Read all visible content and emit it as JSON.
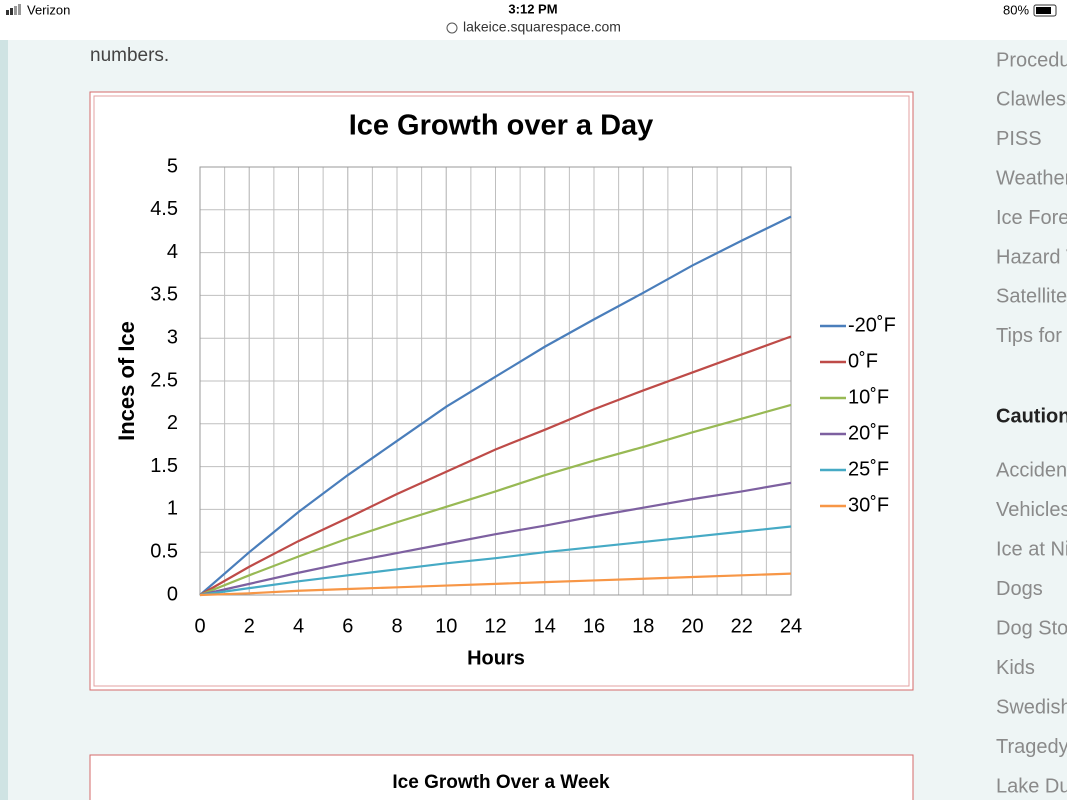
{
  "status_bar": {
    "carrier": "Verizon",
    "time": "3:12 PM",
    "url": "lakeice.squarespace.com",
    "battery": "80%"
  },
  "article": {
    "text": "numbers."
  },
  "chart_data": {
    "type": "line",
    "title": "Ice Growth over a Day",
    "x_label": "Hours",
    "y_label": "Inces of Ice",
    "x": [
      0,
      2,
      4,
      6,
      8,
      10,
      12,
      14,
      16,
      18,
      20,
      22,
      24
    ],
    "series": [
      {
        "name": "-20˚F",
        "color": "#4a7ebb",
        "values": [
          0,
          0.5,
          0.97,
          1.4,
          1.8,
          2.2,
          2.55,
          2.9,
          3.22,
          3.53,
          3.85,
          4.14,
          4.42
        ]
      },
      {
        "name": "0˚F",
        "color": "#be4b48",
        "values": [
          0,
          0.33,
          0.63,
          0.9,
          1.18,
          1.44,
          1.7,
          1.93,
          2.17,
          2.39,
          2.6,
          2.81,
          3.02
        ]
      },
      {
        "name": "10˚F",
        "color": "#98b954",
        "values": [
          0,
          0.23,
          0.45,
          0.66,
          0.85,
          1.03,
          1.21,
          1.4,
          1.57,
          1.73,
          1.9,
          2.06,
          2.22
        ]
      },
      {
        "name": "20˚F",
        "color": "#7d60a0",
        "values": [
          0,
          0.13,
          0.26,
          0.38,
          0.49,
          0.6,
          0.71,
          0.81,
          0.92,
          1.02,
          1.12,
          1.21,
          1.31
        ]
      },
      {
        "name": "25˚F",
        "color": "#46aac5",
        "values": [
          0,
          0.08,
          0.16,
          0.23,
          0.3,
          0.37,
          0.43,
          0.5,
          0.56,
          0.62,
          0.68,
          0.74,
          0.8
        ]
      },
      {
        "name": "30˚F",
        "color": "#f79646",
        "values": [
          0,
          0.02,
          0.05,
          0.07,
          0.09,
          0.11,
          0.13,
          0.15,
          0.17,
          0.19,
          0.21,
          0.23,
          0.25
        ]
      }
    ],
    "xlim": [
      0,
      24
    ],
    "xticks": [
      0,
      2,
      4,
      6,
      8,
      10,
      12,
      14,
      16,
      18,
      20,
      22,
      24
    ],
    "ylim": [
      0,
      5
    ],
    "yticks": [
      0,
      0.5,
      1,
      1.5,
      2,
      2.5,
      3,
      3.5,
      4,
      4.5,
      5
    ],
    "grid": true,
    "x_grid_step": 1,
    "legend": "right"
  },
  "next_chart": {
    "title": "Ice Growth Over a Week"
  },
  "sidebar": {
    "links": [
      "Procedu",
      "Clawless",
      "PISS",
      "Weather",
      "Ice Fore",
      "Hazard V",
      "Satellite",
      "Tips for"
    ],
    "heading": "Caution",
    "links2": [
      "Acciden",
      "Vehicles",
      "Ice at Ni",
      "Dogs",
      "Dog Sto",
      "Kids",
      "Swedish",
      "Tragedy",
      "Lake Du"
    ]
  }
}
